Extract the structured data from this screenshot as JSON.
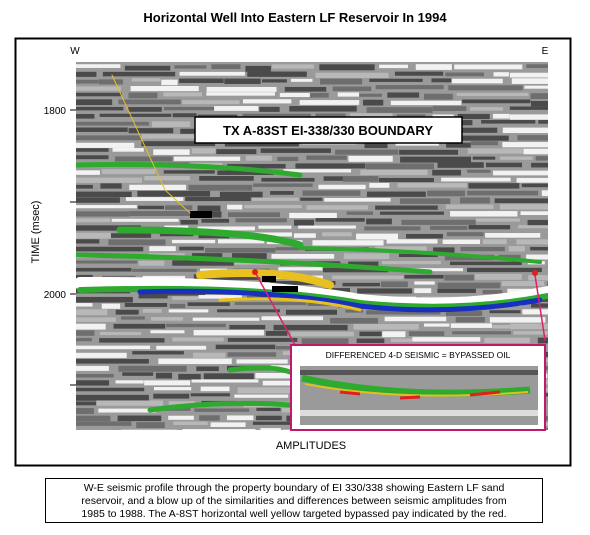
{
  "figure": {
    "title": "Horizontal Well Into Eastern LF Reservoir In 1994",
    "west_label": "W",
    "east_label": "E",
    "y_axis_label": "TIME (msec)",
    "y_tick_labels": [
      "1800",
      "2000"
    ],
    "boundary_label": "TX A-83ST EI-338/330 BOUNDARY",
    "inset_title": "DIFFERENCED 4-D SEISMIC = BYPASSED OIL",
    "x_axis_label": "AMPLITUDES",
    "caption_lines": [
      "W-E seismic profile through the property boundary of EI 330/338 showing Eastern LF sand",
      "reservoir, and a blow up of the similarities and differences between seismic amplitudes from",
      "1985 to 1988.  The A-8ST horizontal well yellow targeted bypassed pay indicated by the red."
    ]
  }
}
